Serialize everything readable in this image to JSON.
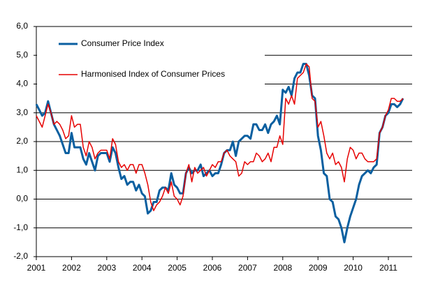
{
  "chart_data": {
    "type": "line",
    "categories": [
      "2001",
      null,
      null,
      null,
      null,
      null,
      null,
      null,
      null,
      null,
      null,
      null,
      "2002",
      null,
      null,
      null,
      null,
      null,
      null,
      null,
      null,
      null,
      null,
      null,
      "2003",
      null,
      null,
      null,
      null,
      null,
      null,
      null,
      null,
      null,
      null,
      null,
      "2004",
      null,
      null,
      null,
      null,
      null,
      null,
      null,
      null,
      null,
      null,
      null,
      "2005",
      null,
      null,
      null,
      null,
      null,
      null,
      null,
      null,
      null,
      null,
      null,
      "2006",
      null,
      null,
      null,
      null,
      null,
      null,
      null,
      null,
      null,
      null,
      null,
      "2007",
      null,
      null,
      null,
      null,
      null,
      null,
      null,
      null,
      null,
      null,
      null,
      "2008",
      null,
      null,
      null,
      null,
      null,
      null,
      null,
      null,
      null,
      null,
      null,
      "2009",
      null,
      null,
      null,
      null,
      null,
      null,
      null,
      null,
      null,
      null,
      null,
      "2010",
      null,
      null,
      null,
      null,
      null,
      null,
      null,
      null,
      null,
      null,
      null,
      "2011",
      null,
      null,
      null,
      null,
      null
    ],
    "series": [
      {
        "name": "Consumer Price Index",
        "color": "#0a5fa0",
        "values": [
          3.3,
          3.1,
          2.9,
          3.0,
          3.4,
          3.0,
          2.6,
          2.4,
          2.2,
          1.9,
          1.6,
          1.6,
          2.3,
          1.8,
          1.8,
          1.8,
          1.4,
          1.2,
          1.6,
          1.3,
          1.0,
          1.5,
          1.6,
          1.6,
          1.6,
          1.3,
          1.8,
          1.6,
          1.1,
          0.7,
          0.8,
          0.5,
          0.6,
          0.6,
          0.3,
          0.5,
          0.2,
          0.1,
          -0.5,
          -0.4,
          -0.1,
          -0.1,
          0.3,
          0.4,
          0.4,
          0.3,
          0.9,
          0.5,
          0.4,
          0.2,
          0.2,
          0.9,
          1.1,
          0.9,
          1.0,
          1.0,
          1.2,
          0.8,
          0.9,
          1.0,
          0.8,
          0.9,
          0.9,
          1.2,
          1.6,
          1.7,
          1.7,
          2.0,
          1.5,
          2.0,
          2.1,
          2.2,
          2.2,
          2.1,
          2.6,
          2.6,
          2.4,
          2.4,
          2.6,
          2.3,
          2.6,
          2.7,
          2.9,
          2.6,
          3.8,
          3.7,
          3.9,
          3.6,
          4.2,
          4.4,
          4.4,
          4.7,
          4.7,
          4.3,
          3.6,
          3.5,
          2.2,
          1.7,
          0.9,
          0.8,
          0.0,
          -0.1,
          -0.6,
          -0.7,
          -1.0,
          -1.5,
          -1.0,
          -0.6,
          -0.3,
          0.0,
          0.5,
          0.8,
          0.9,
          1.0,
          0.9,
          1.1,
          1.2,
          2.3,
          2.5,
          2.9,
          3.0,
          3.3,
          3.3,
          3.2,
          3.3,
          3.5
        ]
      },
      {
        "name": "Harmonised Index of Consumer Prices",
        "color": "#e60000",
        "values": [
          2.9,
          2.7,
          2.5,
          2.9,
          3.3,
          3.0,
          2.6,
          2.7,
          2.6,
          2.4,
          2.1,
          2.2,
          2.9,
          2.5,
          2.6,
          2.6,
          1.8,
          1.5,
          2.0,
          1.8,
          1.4,
          1.6,
          1.7,
          1.7,
          1.7,
          1.4,
          2.1,
          1.9,
          1.3,
          1.1,
          1.2,
          1.0,
          1.2,
          1.2,
          0.9,
          1.2,
          1.2,
          0.9,
          0.5,
          -0.1,
          -0.4,
          -0.2,
          -0.1,
          0.1,
          0.4,
          0.2,
          0.6,
          0.1,
          0.0,
          -0.2,
          0.1,
          0.9,
          1.2,
          0.6,
          1.1,
          0.9,
          1.0,
          1.1,
          0.8,
          1.0,
          1.2,
          1.1,
          1.3,
          1.3,
          1.6,
          1.7,
          1.5,
          1.4,
          1.3,
          0.8,
          0.9,
          1.3,
          1.2,
          1.3,
          1.3,
          1.6,
          1.5,
          1.3,
          1.4,
          1.6,
          1.3,
          1.8,
          1.8,
          2.2,
          1.9,
          3.5,
          3.3,
          3.6,
          3.3,
          4.2,
          4.3,
          4.4,
          4.7,
          4.6,
          3.5,
          3.4,
          2.5,
          2.7,
          2.2,
          1.6,
          1.4,
          1.6,
          1.2,
          1.3,
          1.1,
          0.6,
          1.4,
          1.8,
          1.7,
          1.4,
          1.6,
          1.6,
          1.4,
          1.3,
          1.3,
          1.3,
          1.4,
          2.3,
          2.5,
          2.9,
          3.1,
          3.5,
          3.5,
          3.4,
          3.4,
          3.5
        ]
      }
    ],
    "ylim": [
      -2,
      6
    ],
    "yticks": [
      {
        "value": -2,
        "label": "-2,0"
      },
      {
        "value": -1,
        "label": "-1,0"
      },
      {
        "value": 0,
        "label": "0,0"
      },
      {
        "value": 1,
        "label": "1,0"
      },
      {
        "value": 2,
        "label": "2,0"
      },
      {
        "value": 3,
        "label": "3,0"
      },
      {
        "value": 4,
        "label": "4,0"
      },
      {
        "value": 5,
        "label": "5,0"
      },
      {
        "value": 6,
        "label": "6,0"
      }
    ],
    "grid": true,
    "legend": "upper left"
  }
}
